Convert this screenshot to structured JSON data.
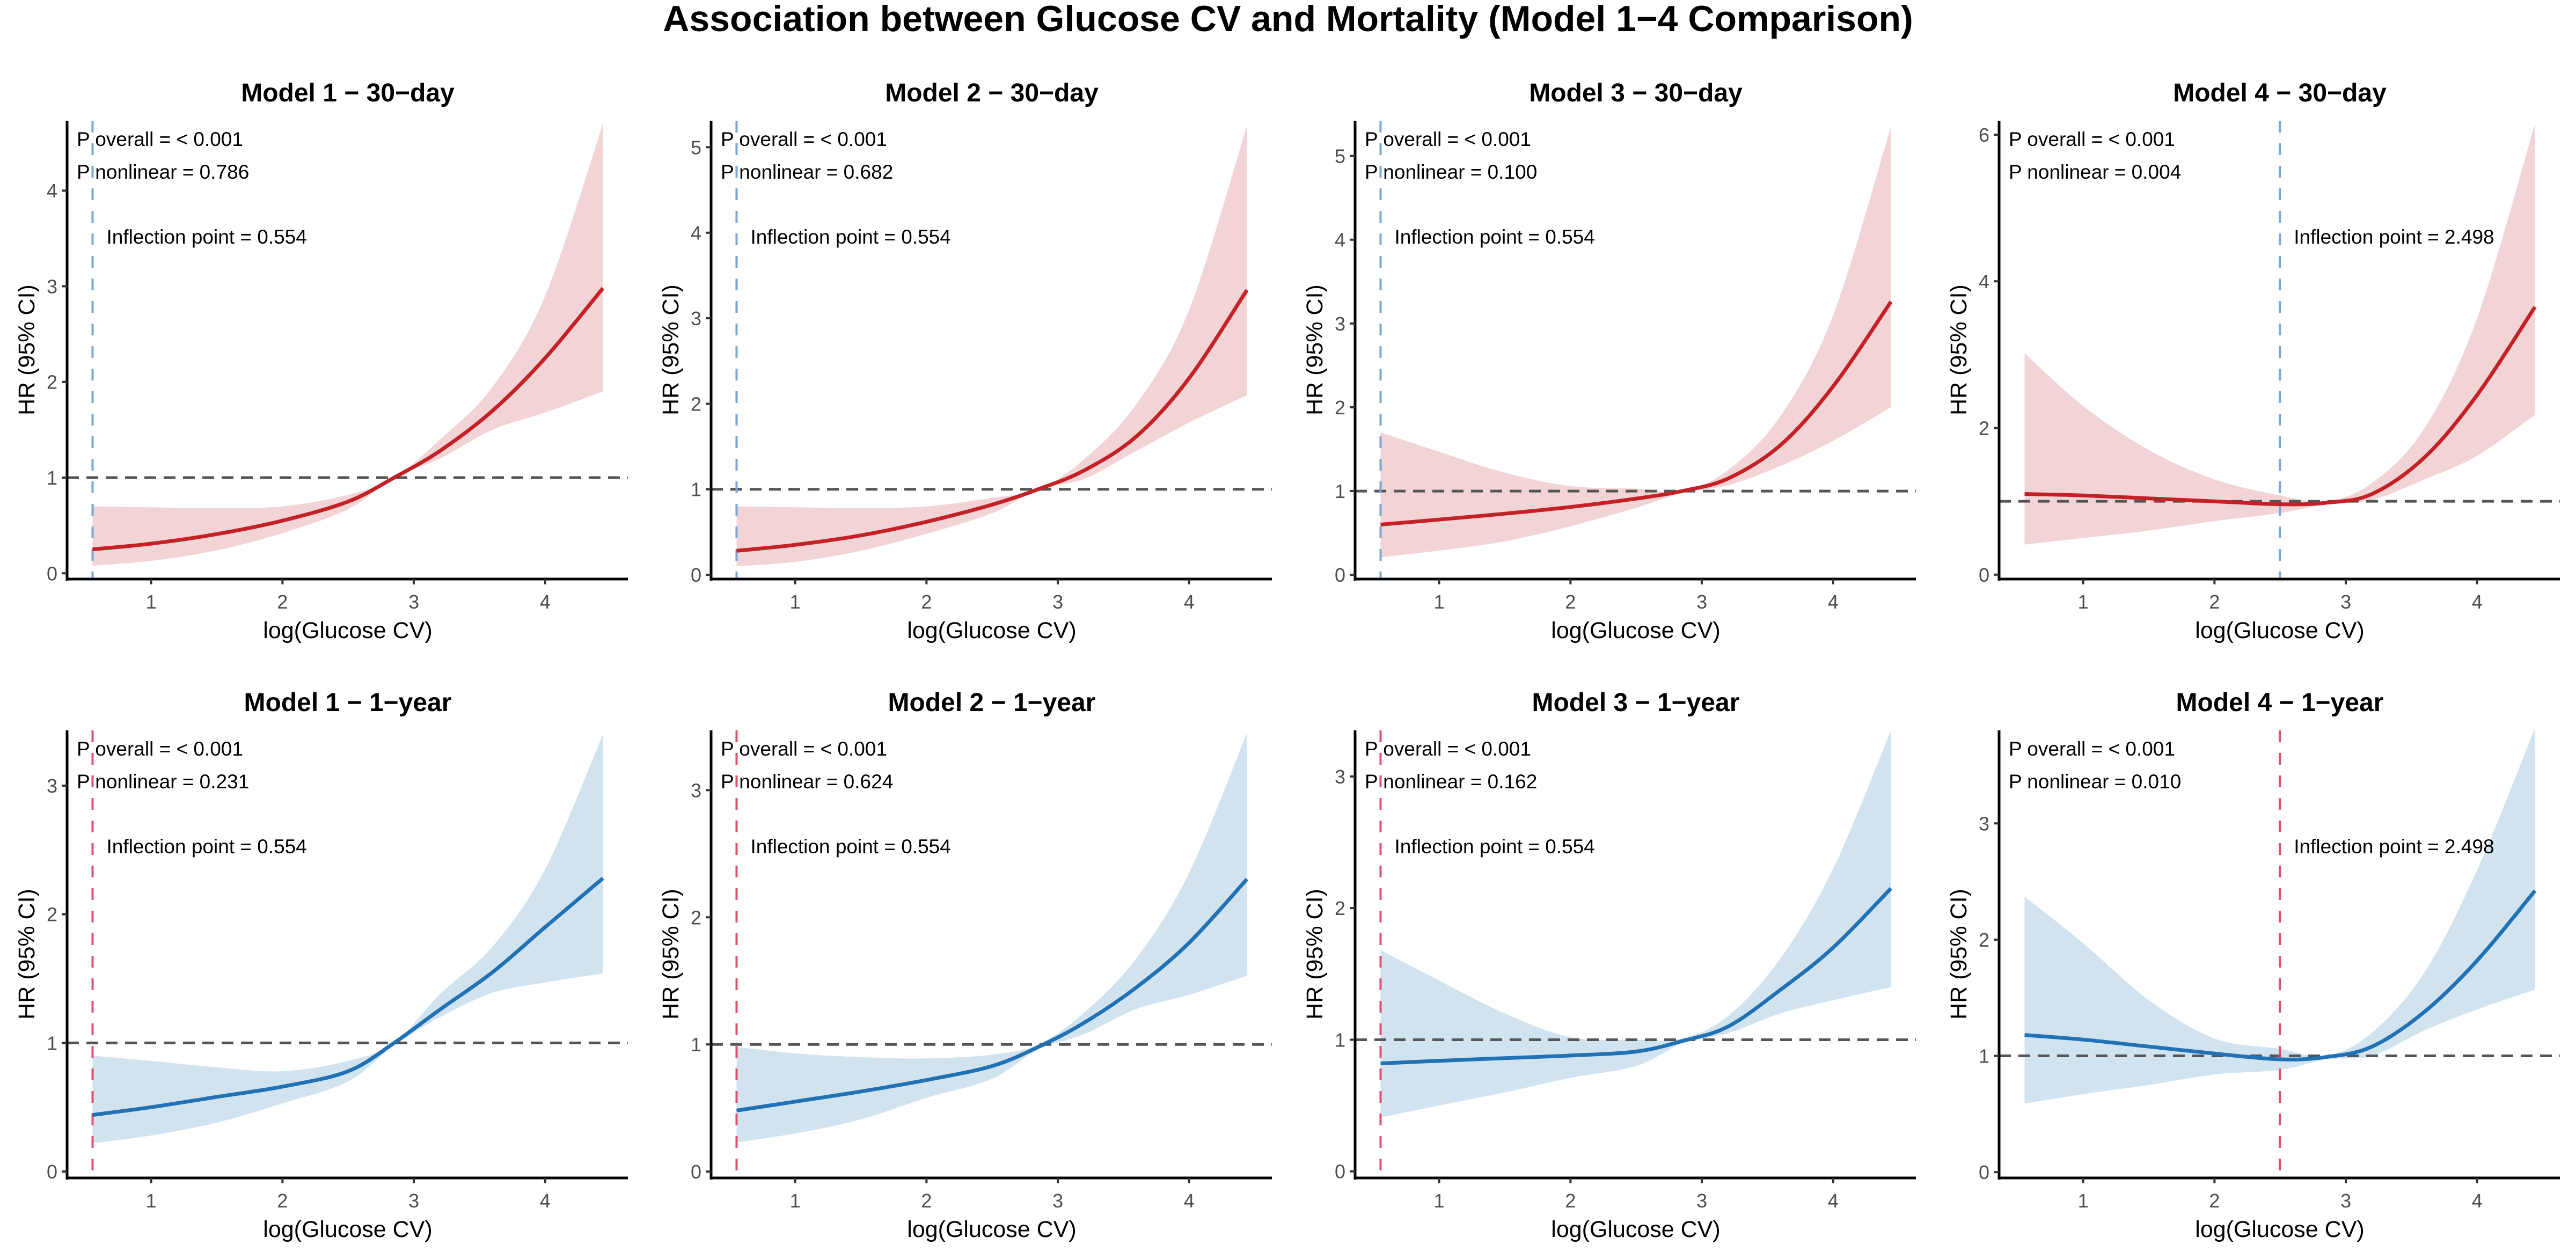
{
  "chart_data": {
    "type": "line",
    "title": "Association between Glucose CV and Mortality (Model 1−4 Comparison)",
    "layout": "grid 2 rows x 4 columns",
    "colors": {
      "red_line": "#c42126",
      "red_fill": "#f2d4d6",
      "blue_line": "#2171b5",
      "blue_fill": "#d2e3f0",
      "blue_vline": "#7aa6cf",
      "red_vline": "#e0506e",
      "ref_line": "#555555"
    },
    "x_grid": [
      0.554,
      1.0,
      1.5,
      2.0,
      2.5,
      2.85,
      3.2,
      3.6,
      4.0,
      4.44
    ],
    "panels": [
      {
        "title": "Model 1 − 30−day",
        "theme": "red",
        "xlabel": "log(Glucose CV)",
        "ylabel": "HR (95% CI)",
        "xlim": [
          0.36,
          4.63
        ],
        "ylim": [
          -0.06,
          4.73
        ],
        "xticks": [
          1,
          2,
          3,
          4
        ],
        "yticks": [
          0,
          1,
          2,
          3,
          4
        ],
        "p_overall": "P overall = < 0.001",
        "p_nonlinear": "P nonlinear = 0.786",
        "inflection_label": "Inflection point = 0.554",
        "inflection_x": 0.554,
        "reference_hr": 1,
        "hr": [
          0.25,
          0.31,
          0.41,
          0.55,
          0.75,
          1.0,
          1.28,
          1.7,
          2.25,
          2.98
        ],
        "lower": [
          0.08,
          0.13,
          0.24,
          0.42,
          0.67,
          1.0,
          1.2,
          1.5,
          1.68,
          1.9
        ],
        "upper": [
          0.7,
          0.69,
          0.68,
          0.7,
          0.82,
          1.0,
          1.4,
          1.95,
          2.9,
          4.7
        ]
      },
      {
        "title": "Model 2 − 30−day",
        "theme": "red",
        "xlabel": "log(Glucose CV)",
        "ylabel": "HR (95% CI)",
        "xlim": [
          0.36,
          4.63
        ],
        "ylim": [
          -0.05,
          5.31
        ],
        "xticks": [
          1,
          2,
          3,
          4
        ],
        "yticks": [
          0,
          1,
          2,
          3,
          4,
          5
        ],
        "p_overall": "P overall = < 0.001",
        "p_nonlinear": "P nonlinear = 0.682",
        "inflection_label": "Inflection point = 0.554",
        "inflection_x": 0.554,
        "reference_hr": 1,
        "hr": [
          0.28,
          0.35,
          0.46,
          0.62,
          0.82,
          1.0,
          1.22,
          1.62,
          2.3,
          3.33
        ],
        "lower": [
          0.1,
          0.15,
          0.28,
          0.48,
          0.72,
          1.0,
          1.12,
          1.45,
          1.78,
          2.1
        ],
        "upper": [
          0.8,
          0.79,
          0.78,
          0.8,
          0.9,
          1.0,
          1.35,
          2.0,
          3.1,
          5.25
        ]
      },
      {
        "title": "Model 3 − 30−day",
        "theme": "red",
        "xlabel": "log(Glucose CV)",
        "ylabel": "HR (95% CI)",
        "xlim": [
          0.36,
          4.63
        ],
        "ylim": [
          -0.05,
          5.42
        ],
        "xticks": [
          1,
          2,
          3,
          4
        ],
        "yticks": [
          0,
          1,
          2,
          3,
          4,
          5
        ],
        "p_overall": "P overall = < 0.001",
        "p_nonlinear": "P nonlinear = 0.100",
        "inflection_label": "Inflection point = 0.554",
        "inflection_x": 0.554,
        "reference_hr": 1,
        "hr": [
          0.6,
          0.66,
          0.73,
          0.81,
          0.91,
          1.0,
          1.15,
          1.55,
          2.25,
          3.26
        ],
        "lower": [
          0.21,
          0.29,
          0.4,
          0.58,
          0.8,
          0.98,
          1.07,
          1.3,
          1.6,
          2.0
        ],
        "upper": [
          1.7,
          1.47,
          1.22,
          1.06,
          1.03,
          1.0,
          1.25,
          1.9,
          3.1,
          5.35
        ]
      },
      {
        "title": "Model 4 − 30−day",
        "theme": "red",
        "xlabel": "log(Glucose CV)",
        "ylabel": "HR (95% CI)",
        "xlim": [
          0.36,
          4.63
        ],
        "ylim": [
          -0.06,
          6.19
        ],
        "xticks": [
          1,
          2,
          3,
          4
        ],
        "yticks": [
          0,
          2,
          4,
          6
        ],
        "p_overall": "P overall = < 0.001",
        "p_nonlinear": "P nonlinear = 0.004",
        "inflection_label": "Inflection point = 2.498",
        "inflection_x": 2.498,
        "reference_hr": 1,
        "hr": [
          1.1,
          1.08,
          1.04,
          1.0,
          0.96,
          0.98,
          1.1,
          1.6,
          2.45,
          3.65
        ],
        "lower": [
          0.41,
          0.5,
          0.6,
          0.73,
          0.84,
          0.96,
          1.02,
          1.3,
          1.62,
          2.18
        ],
        "upper": [
          3.02,
          2.3,
          1.7,
          1.3,
          1.08,
          1.0,
          1.25,
          2.0,
          3.5,
          6.15
        ]
      },
      {
        "title": "Model 1 − 1−year",
        "theme": "blue",
        "xlabel": "log(Glucose CV)",
        "ylabel": "HR (95% CI)",
        "xlim": [
          0.36,
          4.63
        ],
        "ylim": [
          -0.05,
          3.43
        ],
        "xticks": [
          1,
          2,
          3,
          4
        ],
        "yticks": [
          0,
          1,
          2,
          3
        ],
        "p_overall": "P overall = < 0.001",
        "p_nonlinear": "P nonlinear = 0.231",
        "inflection_label": "Inflection point = 0.554",
        "inflection_x": 0.554,
        "reference_hr": 1,
        "hr": [
          0.44,
          0.5,
          0.58,
          0.66,
          0.78,
          1.0,
          1.26,
          1.55,
          1.9,
          2.28
        ],
        "lower": [
          0.22,
          0.28,
          0.38,
          0.53,
          0.7,
          0.98,
          1.2,
          1.39,
          1.47,
          1.54
        ],
        "upper": [
          0.9,
          0.86,
          0.81,
          0.78,
          0.86,
          1.0,
          1.38,
          1.75,
          2.35,
          3.4
        ]
      },
      {
        "title": "Model 2 − 1−year",
        "theme": "blue",
        "xlabel": "log(Glucose CV)",
        "ylabel": "HR (95% CI)",
        "xlim": [
          0.36,
          4.63
        ],
        "ylim": [
          -0.05,
          3.47
        ],
        "xticks": [
          1,
          2,
          3,
          4
        ],
        "yticks": [
          0,
          1,
          2,
          3
        ],
        "p_overall": "P overall = < 0.001",
        "p_nonlinear": "P nonlinear = 0.624",
        "inflection_label": "Inflection point = 0.554",
        "inflection_x": 0.554,
        "reference_hr": 1,
        "hr": [
          0.48,
          0.55,
          0.63,
          0.72,
          0.83,
          0.98,
          1.17,
          1.45,
          1.8,
          2.3
        ],
        "lower": [
          0.23,
          0.3,
          0.41,
          0.58,
          0.73,
          0.96,
          1.08,
          1.28,
          1.39,
          1.54
        ],
        "upper": [
          0.98,
          0.93,
          0.9,
          0.89,
          0.92,
          1.0,
          1.25,
          1.68,
          2.35,
          3.45
        ]
      },
      {
        "title": "Model 3 − 1−year",
        "theme": "blue",
        "xlabel": "log(Glucose CV)",
        "ylabel": "HR (95% CI)",
        "xlim": [
          0.36,
          4.63
        ],
        "ylim": [
          -0.05,
          3.35
        ],
        "xticks": [
          1,
          2,
          3,
          4
        ],
        "yticks": [
          0,
          1,
          2,
          3
        ],
        "p_overall": "P overall = < 0.001",
        "p_nonlinear": "P nonlinear = 0.162",
        "inflection_label": "Inflection point = 0.554",
        "inflection_x": 0.554,
        "reference_hr": 1,
        "hr": [
          0.82,
          0.84,
          0.86,
          0.88,
          0.91,
          0.99,
          1.1,
          1.38,
          1.7,
          2.15
        ],
        "lower": [
          0.41,
          0.5,
          0.6,
          0.71,
          0.8,
          0.97,
          1.05,
          1.2,
          1.3,
          1.4
        ],
        "upper": [
          1.68,
          1.45,
          1.2,
          1.02,
          1.0,
          1.01,
          1.18,
          1.62,
          2.3,
          3.35
        ]
      },
      {
        "title": "Model 4 − 1−year",
        "theme": "blue",
        "xlabel": "log(Glucose CV)",
        "ylabel": "HR (95% CI)",
        "xlim": [
          0.36,
          4.63
        ],
        "ylim": [
          -0.05,
          3.8
        ],
        "xticks": [
          1,
          2,
          3,
          4
        ],
        "yticks": [
          0,
          1,
          2,
          3
        ],
        "p_overall": "P overall = < 0.001",
        "p_nonlinear": "P nonlinear = 0.010",
        "inflection_label": "Inflection point = 2.498",
        "inflection_x": 2.498,
        "reference_hr": 1,
        "hr": [
          1.18,
          1.14,
          1.08,
          1.02,
          0.97,
          0.99,
          1.08,
          1.38,
          1.82,
          2.42
        ],
        "lower": [
          0.59,
          0.67,
          0.75,
          0.84,
          0.88,
          0.97,
          1.0,
          1.22,
          1.4,
          1.57
        ],
        "upper": [
          2.37,
          1.97,
          1.48,
          1.15,
          1.06,
          1.0,
          1.2,
          1.72,
          2.6,
          3.82
        ]
      }
    ]
  }
}
